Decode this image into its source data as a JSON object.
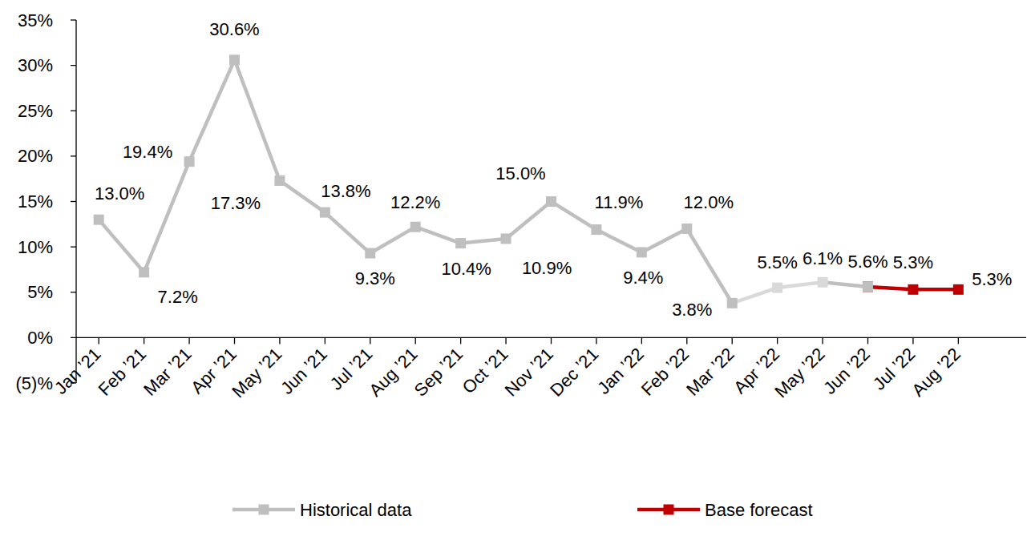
{
  "chart_data": {
    "type": "line",
    "categories": [
      "Jan ’21",
      "Feb ’21",
      "Mar ’21",
      "Apr ’21",
      "May ’21",
      "Jun ’21",
      "Jul ’21",
      "Aug ’21",
      "Sep ’21",
      "Oct ’21",
      "Nov ’21",
      "Dec ’21",
      "Jan ’22",
      "Feb ’22",
      "Mar ’22",
      "Apr ’22",
      "May ’22",
      "Jun ’22",
      "Jul ’22",
      "Aug ’22",
      null
    ],
    "ylim": [
      -5,
      35
    ],
    "yticks": [
      {
        "value": -5,
        "label": "(5)%"
      },
      {
        "value": 0,
        "label": "0%"
      },
      {
        "value": 5,
        "label": "5%"
      },
      {
        "value": 10,
        "label": "10%"
      },
      {
        "value": 15,
        "label": "15%"
      },
      {
        "value": 20,
        "label": "20%"
      },
      {
        "value": 25,
        "label": "25%"
      },
      {
        "value": 30,
        "label": "30%"
      },
      {
        "value": 35,
        "label": "35%"
      }
    ],
    "grid": false,
    "legend": "bottom",
    "data_labels": true,
    "series": [
      {
        "name": "Historical data",
        "color": "#BFBFBF",
        "marker": "square",
        "colors": [
          "#BFBFBF",
          "#BFBFBF",
          "#BFBFBF",
          "#BFBFBF",
          "#BFBFBF",
          "#BFBFBF",
          "#BFBFBF",
          "#BFBFBF",
          "#BFBFBF",
          "#BFBFBF",
          "#BFBFBF",
          "#BFBFBF",
          "#BFBFBF",
          "#BFBFBF",
          "#BFBFBF",
          "#D9D9D9",
          "#D9D9D9",
          "#BFBFBF",
          "#BFBFBF",
          "#BFBFBF",
          "#BFBFBF"
        ],
        "values": [
          13.0,
          7.2,
          19.4,
          30.6,
          17.3,
          13.8,
          9.3,
          12.2,
          10.4,
          10.9,
          15.0,
          11.9,
          9.4,
          12.0,
          3.8,
          5.5,
          6.1,
          5.6,
          null,
          null,
          null
        ],
        "value_labels": [
          "13.0%",
          "7.2%",
          "19.4%",
          "30.6%",
          "17.3%",
          "13.8%",
          "9.3%",
          "12.2%",
          "10.4%",
          "10.9%",
          "15.0%",
          "11.9%",
          "9.4%",
          "12.0%",
          "3.8%",
          "5.5%",
          "6.1%",
          "5.6%",
          null,
          null,
          null
        ]
      },
      {
        "name": "Base forecast",
        "color": "#C00000",
        "marker": "square",
        "values": [
          null,
          null,
          null,
          null,
          null,
          null,
          null,
          null,
          null,
          null,
          null,
          null,
          null,
          null,
          null,
          null,
          null,
          5.6,
          5.3,
          5.3,
          null
        ],
        "value_labels": [
          null,
          null,
          null,
          null,
          null,
          null,
          null,
          null,
          null,
          null,
          null,
          null,
          null,
          null,
          null,
          null,
          null,
          null,
          "5.3%",
          "5.3%",
          null
        ]
      }
    ]
  }
}
